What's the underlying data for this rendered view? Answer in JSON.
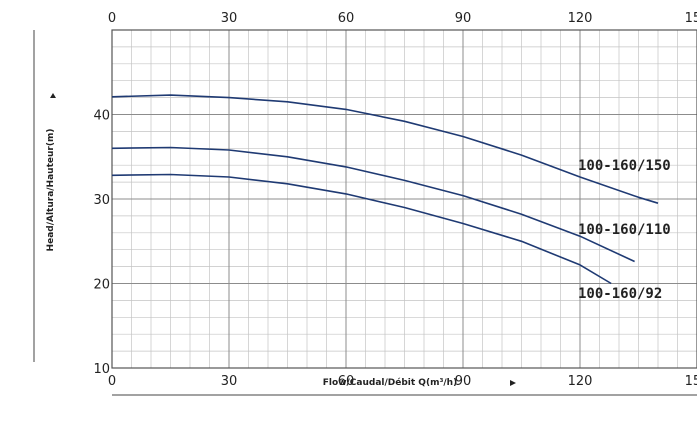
{
  "chart_data": {
    "type": "line",
    "xlabel": "Flow/Caudal/Débit Q(m³/h)",
    "ylabel": "Head/Altura/Hauteur(m)",
    "xlim": [
      0,
      150
    ],
    "ylim": [
      10,
      50
    ],
    "x_ticks": [
      "0",
      "30",
      "60",
      "90",
      "120",
      "150"
    ],
    "y_ticks": [
      "10",
      "20",
      "30",
      "40"
    ],
    "grid": true,
    "line_color": "#1f3a73",
    "series": [
      {
        "name": "100-160/150",
        "x": [
          0,
          15,
          30,
          45,
          60,
          75,
          90,
          105,
          120,
          135,
          140
        ],
        "y": [
          42.1,
          42.3,
          42.0,
          41.5,
          40.6,
          39.2,
          37.4,
          35.2,
          32.6,
          30.2,
          29.5
        ]
      },
      {
        "name": "100-160/110",
        "x": [
          0,
          15,
          30,
          45,
          60,
          75,
          90,
          105,
          120,
          134
        ],
        "y": [
          36.0,
          36.1,
          35.8,
          35.0,
          33.8,
          32.2,
          30.4,
          28.2,
          25.6,
          22.6
        ]
      },
      {
        "name": "100-160/92",
        "x": [
          0,
          15,
          30,
          45,
          60,
          75,
          90,
          105,
          120,
          128
        ],
        "y": [
          32.8,
          32.9,
          32.6,
          31.8,
          30.6,
          29.0,
          27.1,
          25.0,
          22.2,
          20.0
        ]
      }
    ]
  }
}
